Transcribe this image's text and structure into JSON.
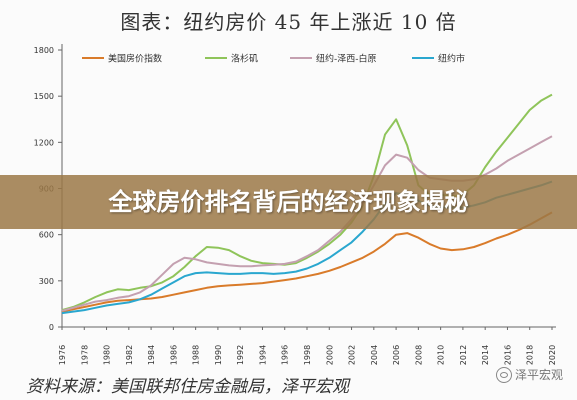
{
  "title": "图表：纽约房价 45 年上涨近 10 倍",
  "banner": "全球房价排名背后的经济现象揭秘",
  "source": "资料来源：美国联邦住房金融局，泽平宏观",
  "watermark": "泽平宏观",
  "chart_data": {
    "type": "line",
    "title": "图表：纽约房价 45 年上涨近 10 倍",
    "xlabel": "",
    "ylabel": "",
    "x": [
      1976,
      1977,
      1978,
      1979,
      1980,
      1981,
      1982,
      1983,
      1984,
      1985,
      1986,
      1987,
      1988,
      1989,
      1990,
      1991,
      1992,
      1993,
      1994,
      1995,
      1996,
      1997,
      1998,
      1999,
      2000,
      2001,
      2002,
      2003,
      2004,
      2005,
      2006,
      2007,
      2008,
      2009,
      2010,
      2011,
      2012,
      2013,
      2014,
      2015,
      2016,
      2017,
      2018,
      2019,
      2020
    ],
    "x_ticks": [
      "1976",
      "1978",
      "1980",
      "1982",
      "1984",
      "1986",
      "1988",
      "1990",
      "1992",
      "1994",
      "1996",
      "1998",
      "2000",
      "2002",
      "2004",
      "2006",
      "2008",
      "2010",
      "2012",
      "2014",
      "2016",
      "2018",
      "2020"
    ],
    "y_ticks": [
      "0",
      "300",
      "600",
      "900",
      "1200",
      "1500",
      "1800"
    ],
    "ylim": [
      0,
      1800
    ],
    "legend_position": "top",
    "grid": false,
    "series": [
      {
        "name": "美国房价指数",
        "color": "#d97b2a",
        "values": [
          100,
          115,
          130,
          145,
          160,
          170,
          175,
          180,
          185,
          195,
          210,
          225,
          240,
          255,
          265,
          270,
          275,
          280,
          285,
          295,
          305,
          315,
          330,
          345,
          365,
          390,
          420,
          450,
          490,
          540,
          600,
          610,
          580,
          540,
          510,
          500,
          505,
          520,
          545,
          575,
          600,
          630,
          665,
          705,
          745
        ]
      },
      {
        "name": "洛杉矶",
        "color": "#8fc45a",
        "values": [
          110,
          130,
          160,
          195,
          225,
          245,
          240,
          255,
          265,
          290,
          330,
          390,
          460,
          520,
          515,
          500,
          460,
          430,
          415,
          410,
          405,
          415,
          450,
          490,
          540,
          600,
          680,
          790,
          980,
          1250,
          1350,
          1180,
          920,
          860,
          860,
          850,
          860,
          920,
          1040,
          1140,
          1230,
          1320,
          1410,
          1470,
          1510
        ]
      },
      {
        "name": "纽约-泽西-白原",
        "color": "#c4a0b0",
        "values": [
          105,
          125,
          145,
          165,
          175,
          190,
          200,
          225,
          270,
          340,
          410,
          450,
          440,
          420,
          410,
          400,
          395,
          395,
          400,
          405,
          410,
          425,
          460,
          500,
          560,
          620,
          700,
          800,
          920,
          1050,
          1120,
          1100,
          1020,
          970,
          960,
          950,
          950,
          960,
          990,
          1030,
          1080,
          1120,
          1160,
          1200,
          1240
        ]
      },
      {
        "name": "纽约市",
        "color": "#2aa7cf",
        "values": [
          90,
          100,
          110,
          125,
          140,
          150,
          160,
          180,
          210,
          250,
          290,
          330,
          350,
          355,
          350,
          345,
          345,
          350,
          350,
          345,
          350,
          360,
          380,
          410,
          450,
          500,
          550,
          620,
          700,
          800,
          870,
          860,
          820,
          790,
          780,
          775,
          775,
          790,
          810,
          840,
          860,
          880,
          900,
          920,
          945
        ]
      }
    ]
  }
}
